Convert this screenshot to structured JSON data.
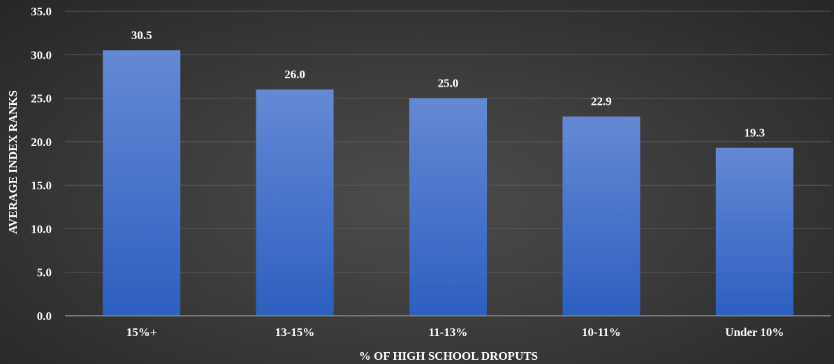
{
  "chart_data": {
    "type": "bar",
    "title": "",
    "xlabel": "% OF HIGH SCHOOL DROPUTS",
    "ylabel": "AVERAGE INDEX RANKS",
    "categories": [
      "15%+",
      "13-15%",
      "11-13%",
      "10-11%",
      "Under 10%"
    ],
    "values": [
      30.5,
      26.0,
      25.0,
      22.9,
      19.3
    ],
    "value_labels": [
      "30.5",
      "26.0",
      "25.0",
      "22.9",
      "19.3"
    ],
    "ylim": [
      0,
      35
    ],
    "yticks": [
      0,
      5,
      10,
      15,
      20,
      25,
      30,
      35
    ],
    "ytick_labels": [
      "0.0",
      "5.0",
      "10.0",
      "15.0",
      "20.0",
      "25.0",
      "30.0",
      "35.0"
    ],
    "grid": true,
    "legend": "none",
    "colors": {
      "bar_top": "#6589d4",
      "bar_bottom": "#2d5fc0",
      "gridline": "#5a5a5a",
      "axis_line": "#8a8a8a",
      "text": "#ffffff"
    }
  }
}
